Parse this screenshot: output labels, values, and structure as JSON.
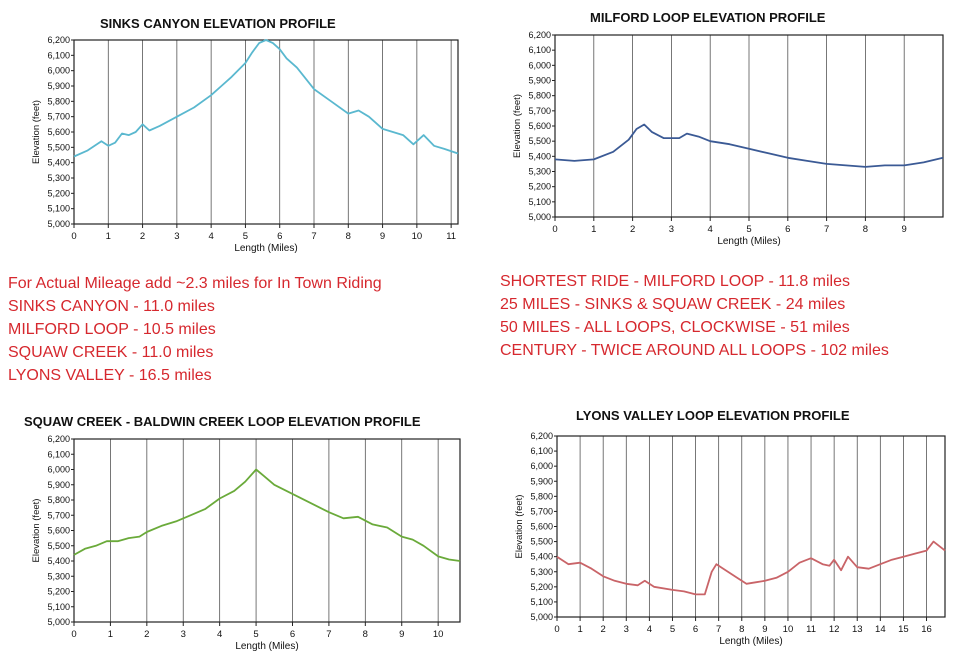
{
  "colors": {
    "sinks": "#5ab8cf",
    "milford": "#3b5a95",
    "squaw": "#6aaa3a",
    "lyons": "#c96468",
    "note_text": "#d6282e"
  },
  "chart_data": [
    {
      "id": "sinks",
      "type": "line",
      "title": "SINKS CANYON ELEVATION PROFILE",
      "xlabel": "Length (Miles)",
      "ylabel": "Elevation (feet)",
      "xlim": [
        0,
        11.2
      ],
      "ylim": [
        5000,
        6200
      ],
      "x_ticks": [
        0,
        1,
        2,
        3,
        4,
        5,
        6,
        7,
        8,
        9,
        10,
        11
      ],
      "y_ticks": [
        "5,000",
        "5,100",
        "5,200",
        "5,300",
        "5,400",
        "5,500",
        "5,600",
        "5,700",
        "5,800",
        "5,900",
        "6,000",
        "6,100",
        "6,200"
      ],
      "series": [
        {
          "name": "Sinks Canyon",
          "color_key": "sinks",
          "x": [
            0,
            0.4,
            0.8,
            1.0,
            1.2,
            1.4,
            1.6,
            1.8,
            2.0,
            2.2,
            2.5,
            3.0,
            3.5,
            4.0,
            4.3,
            4.6,
            5.0,
            5.2,
            5.4,
            5.6,
            5.8,
            6.0,
            6.2,
            6.5,
            7.0,
            7.5,
            8.0,
            8.3,
            8.6,
            9.0,
            9.3,
            9.6,
            9.9,
            10.2,
            10.5,
            10.8,
            11.2
          ],
          "y": [
            5440,
            5480,
            5540,
            5510,
            5530,
            5590,
            5580,
            5600,
            5650,
            5610,
            5640,
            5700,
            5760,
            5840,
            5900,
            5960,
            6050,
            6120,
            6180,
            6200,
            6180,
            6140,
            6080,
            6020,
            5880,
            5800,
            5720,
            5740,
            5700,
            5620,
            5600,
            5580,
            5520,
            5580,
            5510,
            5490,
            5460
          ]
        }
      ]
    },
    {
      "id": "milford",
      "type": "line",
      "title": "MILFORD LOOP ELEVATION PROFILE",
      "xlabel": "Length (Miles)",
      "ylabel": "Elevation (feet)",
      "xlim": [
        0,
        10
      ],
      "ylim": [
        5000,
        6200
      ],
      "x_ticks": [
        0,
        1,
        2,
        3,
        4,
        5,
        6,
        7,
        8,
        9
      ],
      "y_ticks": [
        "5,000",
        "5,100",
        "5,200",
        "5,300",
        "5,400",
        "5,500",
        "5,600",
        "5,700",
        "5,800",
        "5,900",
        "6,000",
        "6,100",
        "6,200"
      ],
      "series": [
        {
          "name": "Milford Loop",
          "color_key": "milford",
          "x": [
            0,
            0.5,
            1.0,
            1.5,
            1.9,
            2.1,
            2.3,
            2.5,
            2.8,
            3.2,
            3.4,
            3.7,
            4.0,
            4.5,
            5.0,
            5.5,
            6.0,
            6.5,
            7.0,
            7.5,
            8.0,
            8.5,
            9.0,
            9.5,
            10.0
          ],
          "y": [
            5380,
            5370,
            5380,
            5430,
            5510,
            5580,
            5610,
            5560,
            5520,
            5520,
            5550,
            5530,
            5500,
            5480,
            5450,
            5420,
            5390,
            5370,
            5350,
            5340,
            5330,
            5340,
            5340,
            5360,
            5390
          ]
        }
      ]
    },
    {
      "id": "squaw",
      "type": "line",
      "title": "SQUAW CREEK - BALDWIN CREEK LOOP ELEVATION PROFILE",
      "xlabel": "Length (Miles)",
      "ylabel": "Elevation (feet)",
      "xlim": [
        0,
        10.6
      ],
      "ylim": [
        5000,
        6200
      ],
      "x_ticks": [
        0,
        1,
        2,
        3,
        4,
        5,
        6,
        7,
        8,
        9,
        10
      ],
      "y_ticks": [
        "5,000",
        "5,100",
        "5,200",
        "5,300",
        "5,400",
        "5,500",
        "5,600",
        "5,700",
        "5,800",
        "5,900",
        "6,000",
        "6,100",
        "6,200"
      ],
      "series": [
        {
          "name": "Squaw Creek - Baldwin Creek",
          "color_key": "squaw",
          "x": [
            0,
            0.3,
            0.6,
            0.9,
            1.2,
            1.5,
            1.8,
            2.0,
            2.4,
            2.8,
            3.2,
            3.6,
            4.0,
            4.4,
            4.7,
            5.0,
            5.2,
            5.5,
            6.0,
            6.5,
            7.0,
            7.4,
            7.8,
            8.2,
            8.6,
            9.0,
            9.3,
            9.6,
            10.0,
            10.3,
            10.6
          ],
          "y": [
            5440,
            5480,
            5500,
            5530,
            5530,
            5550,
            5560,
            5590,
            5630,
            5660,
            5700,
            5740,
            5810,
            5860,
            5920,
            6000,
            5960,
            5900,
            5840,
            5780,
            5720,
            5680,
            5690,
            5640,
            5620,
            5560,
            5540,
            5500,
            5430,
            5410,
            5400
          ]
        }
      ]
    },
    {
      "id": "lyons",
      "type": "line",
      "title": "LYONS VALLEY LOOP ELEVATION PROFILE",
      "xlabel": "Length (Miles)",
      "ylabel": "Elevation (feet)",
      "xlim": [
        0,
        16.8
      ],
      "ylim": [
        5000,
        6200
      ],
      "x_ticks": [
        0,
        1,
        2,
        3,
        4,
        5,
        6,
        7,
        8,
        9,
        10,
        11,
        12,
        13,
        14,
        15,
        16
      ],
      "y_ticks": [
        "5,000",
        "5,100",
        "5,200",
        "5,300",
        "5,400",
        "5,500",
        "5,600",
        "5,700",
        "5,800",
        "5,900",
        "6,000",
        "6,100",
        "6,200"
      ],
      "series": [
        {
          "name": "Lyons Valley Loop",
          "color_key": "lyons",
          "x": [
            0,
            0.5,
            1.0,
            1.5,
            2.0,
            2.5,
            3.0,
            3.5,
            3.8,
            4.2,
            5.0,
            5.5,
            6.0,
            6.4,
            6.7,
            6.9,
            7.3,
            7.8,
            8.2,
            8.6,
            9.0,
            9.5,
            10.0,
            10.5,
            11.0,
            11.5,
            11.8,
            12.0,
            12.3,
            12.6,
            13.0,
            13.5,
            14.0,
            14.5,
            15.0,
            15.5,
            16.0,
            16.3,
            16.8
          ],
          "y": [
            5400,
            5350,
            5360,
            5320,
            5270,
            5240,
            5220,
            5210,
            5240,
            5200,
            5180,
            5170,
            5150,
            5150,
            5300,
            5350,
            5310,
            5260,
            5220,
            5230,
            5240,
            5260,
            5300,
            5360,
            5390,
            5350,
            5340,
            5380,
            5310,
            5400,
            5330,
            5320,
            5350,
            5380,
            5400,
            5420,
            5440,
            5500,
            5440
          ]
        }
      ]
    }
  ],
  "notes_left": [
    "For Actual Mileage add ~2.3 miles for In Town Riding",
    "SINKS CANYON - 11.0 miles",
    "MILFORD LOOP - 10.5 miles",
    "SQUAW CREEK - 11.0 miles",
    "LYONS VALLEY - 16.5 miles"
  ],
  "notes_right": [
    "SHORTEST RIDE - MILFORD LOOP - 11.8 miles",
    "25 MILES - SINKS & SQUAW CREEK - 24 miles",
    "50 MILES - ALL LOOPS, CLOCKWISE - 51 miles",
    "CENTURY - TWICE AROUND ALL LOOPS - 102 miles"
  ]
}
